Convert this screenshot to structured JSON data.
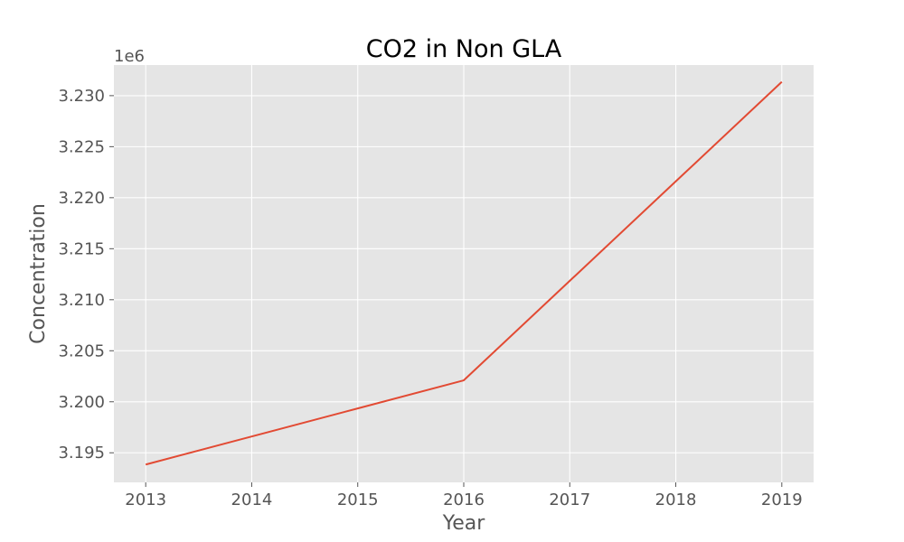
{
  "chart_data": {
    "type": "line",
    "title": "CO2 in Non GLA",
    "xlabel": "Year",
    "ylabel": "Concentration",
    "y_offset_label": "1e6",
    "x": [
      2013,
      2014,
      2015,
      2016,
      2017,
      2018,
      2019
    ],
    "series": [
      {
        "values": [
          3193850,
          3196600,
          3199350,
          3202100,
          3211850,
          3221600,
          3231350
        ]
      }
    ],
    "xlim": [
      2012.7,
      2019.3
    ],
    "ylim": [
      3192100,
      3233000
    ],
    "x_ticks": [
      2013,
      2014,
      2015,
      2016,
      2017,
      2018,
      2019
    ],
    "x_tick_labels": [
      "2013",
      "2014",
      "2015",
      "2016",
      "2017",
      "2018",
      "2019"
    ],
    "y_ticks": [
      3195000,
      3200000,
      3205000,
      3210000,
      3215000,
      3220000,
      3225000,
      3230000
    ],
    "y_tick_labels": [
      "3.195",
      "3.200",
      "3.205",
      "3.210",
      "3.215",
      "3.220",
      "3.225",
      "3.230"
    ],
    "grid": true,
    "colors": {
      "line": "#e24a33",
      "plot_background": "#e5e5e5",
      "grid": "#ffffff",
      "tick_text": "#555555"
    }
  }
}
